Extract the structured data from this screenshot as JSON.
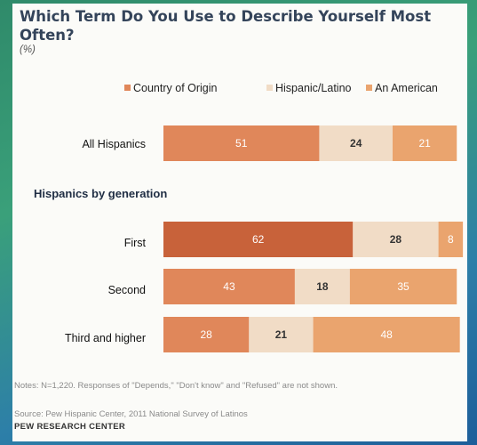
{
  "chart_data": {
    "type": "bar",
    "stacked": true,
    "title": "Which Term Do You Use to Describe Yourself Most Often?",
    "subtitle": "(%)",
    "legend_position": "top",
    "series": [
      {
        "name": "Country of Origin",
        "color": "#e0875a"
      },
      {
        "name": "Hispanic/Latino",
        "color": "#f1dcc6"
      },
      {
        "name": "An American",
        "color": "#eaa46e"
      }
    ],
    "groups": [
      {
        "title": "",
        "rows": [
          {
            "label": "All Hispanics",
            "values": [
              51,
              24,
              21
            ]
          }
        ]
      },
      {
        "title": "Hispanics by generation",
        "rows": [
          {
            "label": "First",
            "values": [
              62,
              28,
              8
            ],
            "highlight_color": "#c8623a"
          },
          {
            "label": "Second",
            "values": [
              43,
              18,
              35
            ]
          },
          {
            "label": "Third and higher",
            "values": [
              28,
              21,
              48
            ]
          }
        ]
      }
    ]
  },
  "notes": "Notes: N=1,220. Responses of \"Depends,\" \"Don't know\" and \"Refused\" are not shown.",
  "source": "Source: Pew Hispanic Center, 2011 National Survey of Latinos",
  "footer": "PEW RESEARCH CENTER"
}
